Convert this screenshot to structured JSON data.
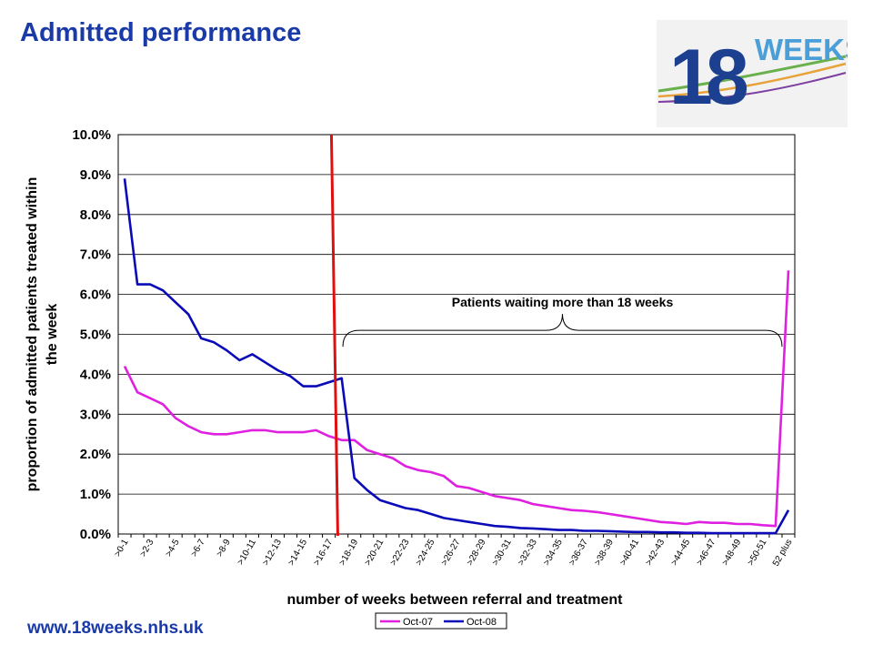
{
  "page": {
    "title": "Admitted performance",
    "footer_url": "www.18weeks.nhs.uk"
  },
  "logo": {
    "number": "18",
    "word": "WEEKS",
    "colors": {
      "primary": "#1c3f8f",
      "accent": "#4a9fd8",
      "green": "#6ab04c",
      "orange": "#e8a23a"
    }
  },
  "chart_data": {
    "type": "line",
    "xlabel": "number of weeks between referral and treatment",
    "ylabel_lines": [
      "proportion of admitted patients treated within",
      "the week"
    ],
    "ylim": [
      0,
      10
    ],
    "y_ticks": [
      "0.0%",
      "1.0%",
      "2.0%",
      "3.0%",
      "4.0%",
      "5.0%",
      "6.0%",
      "7.0%",
      "8.0%",
      "9.0%",
      "10.0%"
    ],
    "grid": "horizontal",
    "legend_position": "bottom",
    "categories": [
      ">0-1",
      ">1-2",
      ">2-3",
      ">3-4",
      ">4-5",
      ">5-6",
      ">6-7",
      ">7-8",
      ">8-9",
      ">9-10",
      ">10-11",
      ">11-12",
      ">12-13",
      ">13-14",
      ">14-15",
      ">15-16",
      ">16-17",
      ">17-18",
      ">18-19",
      ">19-20",
      ">20-21",
      ">21-22",
      ">22-23",
      ">23-24",
      ">24-25",
      ">25-26",
      ">26-27",
      ">27-28",
      ">28-29",
      ">29-30",
      ">30-31",
      ">31-32",
      ">32-33",
      ">33-34",
      ">34-35",
      ">35-36",
      ">36-37",
      ">37-38",
      ">38-39",
      ">39-40",
      ">40-41",
      ">41-42",
      ">42-43",
      ">43-44",
      ">44-45",
      ">45-46",
      ">46-47",
      ">47-48",
      ">48-49",
      ">49-50",
      ">50-51",
      ">51-52",
      "52 plus"
    ],
    "x_tick_labels": [
      ">0-1",
      ">2-3",
      ">4-5",
      ">6-7",
      ">8-9",
      ">10-11",
      ">12-13",
      ">14-15",
      ">16-17",
      ">18-19",
      ">20-21",
      ">22-23",
      ">24-25",
      ">26-27",
      ">28-29",
      ">30-31",
      ">32-33",
      ">34-35",
      ">36-37",
      ">38-39",
      ">40-41",
      ">42-43",
      ">44-45",
      ">46-47",
      ">48-49",
      ">50-51",
      "52 plus"
    ],
    "series": [
      {
        "name": "Oct-07",
        "color": "#e020e0",
        "values": [
          4.2,
          3.55,
          3.4,
          3.25,
          2.9,
          2.7,
          2.55,
          2.5,
          2.5,
          2.55,
          2.6,
          2.6,
          2.55,
          2.55,
          2.55,
          2.6,
          2.45,
          2.35,
          2.35,
          2.1,
          2.0,
          1.9,
          1.7,
          1.6,
          1.55,
          1.45,
          1.2,
          1.15,
          1.05,
          0.95,
          0.9,
          0.85,
          0.75,
          0.7,
          0.65,
          0.6,
          0.58,
          0.55,
          0.5,
          0.45,
          0.4,
          0.35,
          0.3,
          0.28,
          0.25,
          0.3,
          0.28,
          0.28,
          0.25,
          0.25,
          0.22,
          0.2,
          6.6
        ]
      },
      {
        "name": "Oct-08",
        "color": "#0a0ab8",
        "values": [
          8.9,
          6.25,
          6.25,
          6.1,
          5.8,
          5.5,
          4.9,
          4.8,
          4.6,
          4.35,
          4.5,
          4.3,
          4.1,
          3.95,
          3.7,
          3.7,
          3.8,
          3.9,
          1.4,
          1.1,
          0.85,
          0.75,
          0.65,
          0.6,
          0.5,
          0.4,
          0.35,
          0.3,
          0.25,
          0.2,
          0.18,
          0.15,
          0.14,
          0.12,
          0.1,
          0.1,
          0.08,
          0.08,
          0.07,
          0.06,
          0.05,
          0.05,
          0.04,
          0.04,
          0.03,
          0.03,
          0.02,
          0.02,
          0.02,
          0.02,
          0.02,
          0.02,
          0.6
        ]
      }
    ],
    "threshold_line": {
      "x_position": 17.2,
      "color": "#e01010"
    },
    "annotation": {
      "text": "Patients waiting more than 18 weeks",
      "brace_from": 17.6,
      "brace_to": 52,
      "brace_y": 5.1
    }
  }
}
